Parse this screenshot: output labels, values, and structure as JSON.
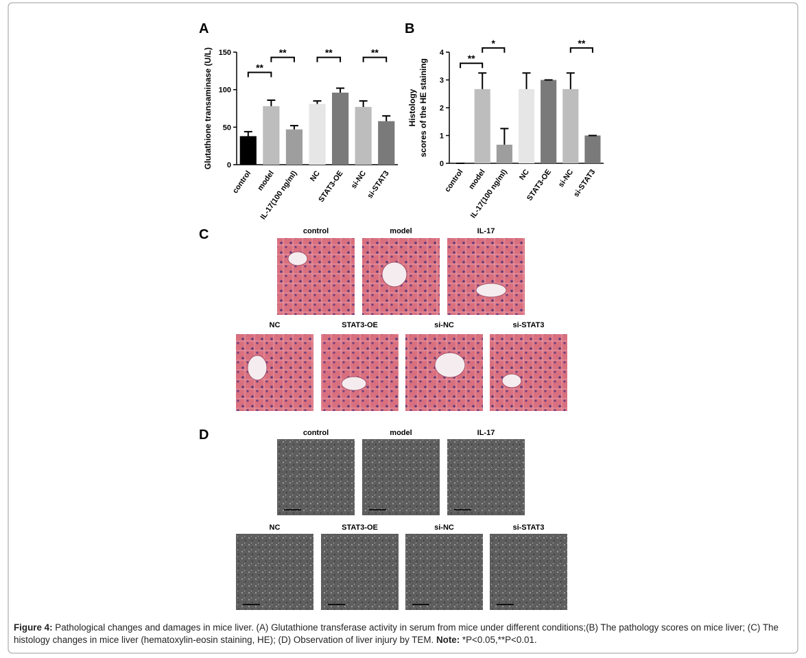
{
  "panels": [
    "A",
    "B",
    "C",
    "D"
  ],
  "chart_data": [
    {
      "type": "bar",
      "ylabel": "Glutathione transaminase (U/L)",
      "categories": [
        "control",
        "model",
        "IL-17(100 ng/ml)",
        "NC",
        "STAT3-OE",
        "si-NC",
        "si-STAT3"
      ],
      "values": [
        38,
        78,
        47,
        81,
        96,
        77,
        58
      ],
      "errors": [
        6,
        8,
        5,
        4,
        6,
        8,
        7
      ],
      "colors": [
        "#000000",
        "#bdbdbd",
        "#9e9e9e",
        "#e6e6e6",
        "#7a7a7a",
        "#bdbdbd",
        "#7a7a7a"
      ],
      "ylim": [
        0,
        150
      ],
      "yticks": [
        0,
        50,
        100,
        150
      ],
      "annotations": [
        {
          "label": "**",
          "from": 0,
          "to": 1,
          "y": 123
        },
        {
          "label": "**",
          "from": 1,
          "to": 2,
          "y": 143
        },
        {
          "label": "**",
          "from": 3,
          "to": 4,
          "y": 143
        },
        {
          "label": "**",
          "from": 5,
          "to": 6,
          "y": 143
        }
      ]
    },
    {
      "type": "bar",
      "ylabel": [
        "Histology",
        "scores of the HE staining"
      ],
      "categories": [
        "control",
        "model",
        "IL-17(100 ng/ml)",
        "NC",
        "STAT3-OE",
        "si-NC",
        "si-STAT3"
      ],
      "values": [
        0,
        2.67,
        0.67,
        2.67,
        3,
        2.67,
        1
      ],
      "errors": [
        0,
        0.58,
        0.58,
        0.58,
        0,
        0.58,
        0
      ],
      "colors": [
        "#000000",
        "#bdbdbd",
        "#9e9e9e",
        "#e6e6e6",
        "#7a7a7a",
        "#bdbdbd",
        "#7a7a7a"
      ],
      "ylim": [
        0,
        4
      ],
      "yticks": [
        0,
        1,
        2,
        3,
        4
      ],
      "annotations": [
        {
          "label": "**",
          "from": 0,
          "to": 1,
          "y": 3.6
        },
        {
          "label": "*",
          "from": 1,
          "to": 2,
          "y": 4.15
        },
        {
          "label": "**",
          "from": 5,
          "to": 6,
          "y": 4.15
        }
      ]
    }
  ],
  "images": {
    "labels": [
      "control",
      "model",
      "IL-17",
      "NC",
      "STAT3-OE",
      "si-NC",
      "si-STAT3"
    ]
  },
  "caption": {
    "figure": "Figure 4:",
    "text": " Pathological changes and damages in mice liver. (A) Glutathione transferase activity in serum from mice under different conditions;(B) The pathology scores on mice liver; (C) The histology changes in mice liver (hematoxylin-eosin staining, HE); (D) Observation of liver injury by TEM. ",
    "note": "Note:",
    "note_text": " *P<0.05,**P<0.01."
  }
}
